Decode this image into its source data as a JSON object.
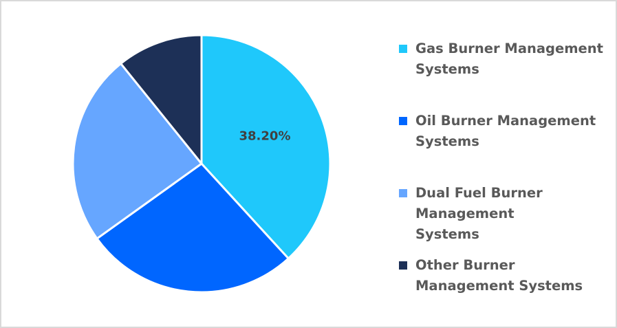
{
  "chart_data": {
    "type": "pie",
    "title": "",
    "categories": [
      "Gas Burner Management Systems",
      "Oil Burner Management Systems",
      "Dual Fuel Burner Management Systems",
      "Other Burner Management Systems"
    ],
    "values": [
      38.2,
      26.9,
      24.1,
      10.8
    ],
    "colors": [
      "#1fc8fb",
      "#0066ff",
      "#66a6ff",
      "#1d3057"
    ],
    "data_labels": [
      {
        "category": "Gas Burner Management Systems",
        "text": "38.20%"
      }
    ],
    "start_angle_deg": 0,
    "direction": "clockwise",
    "legend_position": "right"
  },
  "legend": {
    "items": [
      {
        "label": "Gas Burner Management Systems",
        "color": "#1fc8fb"
      },
      {
        "label": "Oil Burner Management Systems",
        "color": "#0066ff"
      },
      {
        "label": "Dual Fuel Burner Management Systems",
        "color": "#66a6ff"
      },
      {
        "label": "Other Burner Management Systems",
        "color": "#1d3057"
      }
    ]
  },
  "labels": {
    "gas_value": "38.20%"
  }
}
